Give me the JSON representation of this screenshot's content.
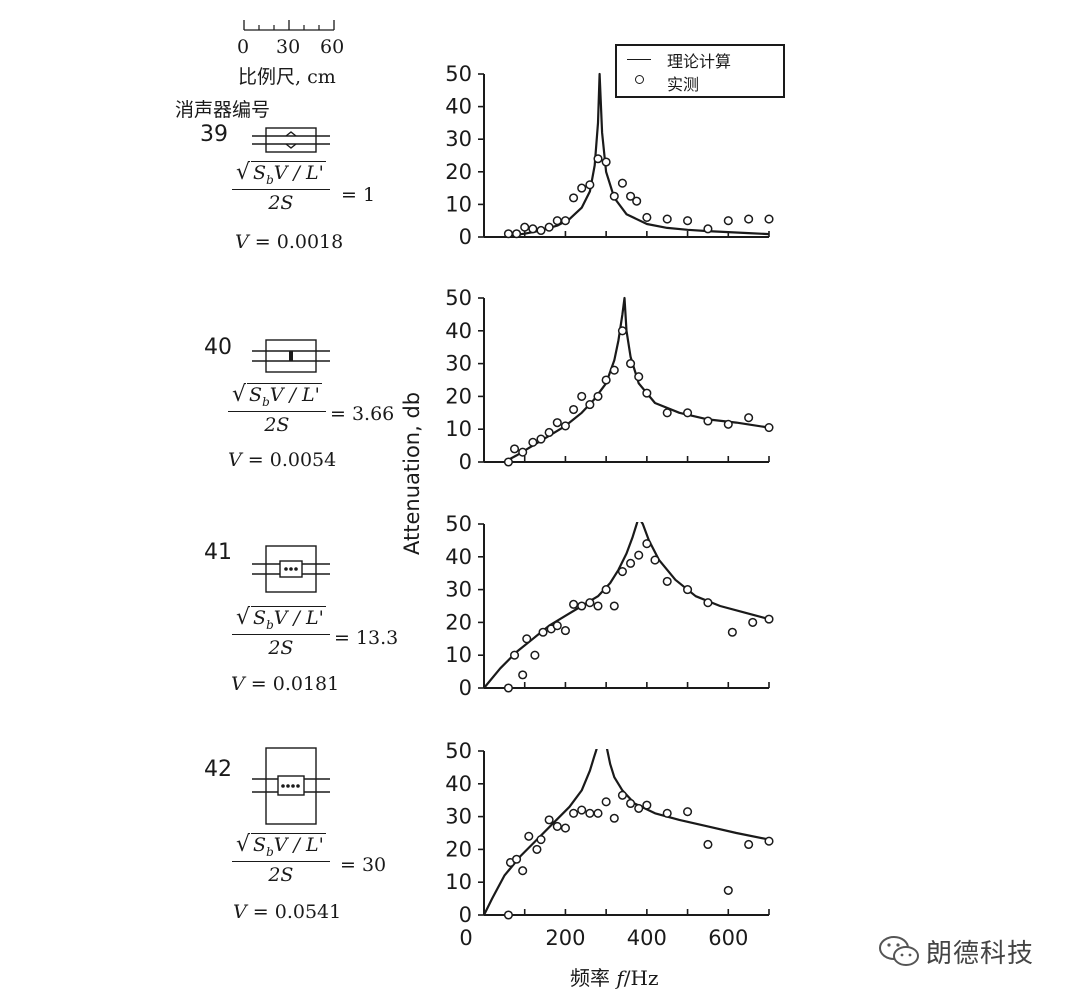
{
  "scale": {
    "ticks": [
      "0",
      "30",
      "60"
    ],
    "label": "比例尺, cm"
  },
  "id_heading": "消声器编号",
  "watermark": {
    "text": "朗德科技",
    "icon": "wechat-icon"
  },
  "muffler_panels": [
    {
      "id": "39",
      "formula_num": "S_bV / L'",
      "formula_den": "2S",
      "ratio": "= 1",
      "v_label": "V",
      "v_value": "= 0.0018"
    },
    {
      "id": "40",
      "formula_num": "S_bV / L'",
      "formula_den": "2S",
      "ratio": "= 3.66",
      "v_label": "V",
      "v_value": "= 0.0054"
    },
    {
      "id": "41",
      "formula_num": "S_bV / L'",
      "formula_den": "2S",
      "ratio": "= 13.3",
      "v_label": "V",
      "v_value": "= 0.0181"
    },
    {
      "id": "42",
      "formula_num": "S_bV / L'",
      "formula_den": "2S",
      "ratio": "= 30",
      "v_label": "V",
      "v_value": "= 0.0541"
    }
  ],
  "chart_data": {
    "type": "line",
    "ylabel": "Attenuation, db",
    "xlabel_cn": "频率",
    "xlabel_var": "f",
    "xlabel_unit": "/Hz",
    "xlim": [
      0,
      700
    ],
    "ylim": [
      0,
      50
    ],
    "x_ticks": [
      0,
      200,
      400,
      600
    ],
    "y_ticks": [
      0,
      10,
      20,
      30,
      40,
      50
    ],
    "legend": {
      "position": "top-right",
      "entries": [
        {
          "name": "理论计算",
          "marker": "line"
        },
        {
          "name": "实测",
          "marker": "circle"
        }
      ]
    },
    "panels": [
      {
        "id": "39",
        "theory": {
          "x": [
            60,
            100,
            140,
            180,
            210,
            240,
            260,
            272,
            280,
            284,
            290,
            300,
            320,
            350,
            400,
            450,
            500,
            550,
            600,
            650,
            700
          ],
          "y": [
            0.4,
            1,
            2,
            3.5,
            5.5,
            9,
            14,
            22,
            35,
            50,
            32,
            20,
            12,
            7,
            4,
            2.8,
            2.2,
            1.8,
            1.5,
            1.2,
            0.9
          ]
        },
        "measured": {
          "x": [
            60,
            80,
            100,
            120,
            140,
            160,
            180,
            200,
            220,
            240,
            260,
            280,
            300,
            320,
            340,
            360,
            375,
            400,
            450,
            500,
            550,
            600,
            650,
            700
          ],
          "y": [
            1,
            1,
            3,
            2.5,
            2,
            3,
            5,
            5,
            12,
            15,
            16,
            24,
            23,
            12.5,
            16.5,
            12.5,
            11,
            6,
            5.5,
            5,
            2.5,
            5,
            5.5,
            5.5
          ]
        }
      },
      {
        "id": "40",
        "theory": {
          "x": [
            50,
            80,
            120,
            160,
            200,
            240,
            270,
            300,
            320,
            330,
            340,
            345,
            350,
            360,
            380,
            420,
            480,
            550,
            620,
            700
          ],
          "y": [
            0,
            2,
            5,
            8,
            11,
            15,
            19,
            24,
            31,
            37,
            45,
            50,
            40,
            32,
            24,
            18,
            15,
            13,
            12,
            10.5
          ]
        },
        "measured": {
          "x": [
            60,
            75,
            95,
            120,
            140,
            160,
            180,
            200,
            220,
            240,
            260,
            280,
            300,
            320,
            340,
            360,
            380,
            400,
            450,
            500,
            550,
            600,
            650,
            700
          ],
          "y": [
            0,
            4,
            3,
            6,
            7,
            9,
            12,
            11,
            16,
            20,
            17.5,
            20,
            25,
            28,
            40,
            30,
            26,
            21,
            15,
            15,
            12.5,
            11.5,
            13.5,
            10.5
          ]
        }
      },
      {
        "id": "41",
        "theory": {
          "x": [
            0,
            40,
            80,
            120,
            160,
            200,
            240,
            280,
            310,
            330,
            350,
            365,
            375,
            380,
            390,
            405,
            430,
            470,
            520,
            580,
            640,
            700
          ],
          "y": [
            0,
            6,
            11,
            15,
            19,
            22,
            25,
            28,
            32,
            36,
            41,
            46,
            50,
            52,
            50,
            45,
            39,
            33,
            28,
            25,
            23,
            21
          ]
        },
        "measured": {
          "x": [
            60,
            75,
            95,
            105,
            125,
            145,
            165,
            180,
            200,
            220,
            240,
            260,
            280,
            300,
            320,
            340,
            360,
            380,
            400,
            420,
            450,
            500,
            550,
            610,
            660,
            700
          ],
          "y": [
            0,
            10,
            4,
            15,
            10,
            17,
            18,
            19,
            17.5,
            25.5,
            25,
            26,
            25,
            30,
            25,
            35.5,
            38,
            40.5,
            44,
            39,
            32.5,
            30,
            26,
            17,
            20,
            21
          ]
        }
      },
      {
        "id": "42",
        "theory": {
          "x": [
            0,
            20,
            50,
            90,
            130,
            170,
            210,
            240,
            260,
            270,
            275,
            280,
            290,
            300,
            310,
            320,
            340,
            370,
            420,
            480,
            550,
            620,
            700
          ],
          "y": [
            0,
            5,
            12,
            18,
            23,
            28,
            33,
            38,
            44,
            48,
            50,
            52,
            54,
            52,
            46,
            42,
            38,
            34,
            31,
            29,
            27,
            25,
            23
          ]
        },
        "measured": {
          "x": [
            60,
            65,
            80,
            95,
            110,
            130,
            140,
            160,
            180,
            200,
            220,
            240,
            260,
            280,
            300,
            320,
            340,
            360,
            380,
            400,
            450,
            500,
            550,
            600,
            650,
            700
          ],
          "y": [
            0,
            16,
            17,
            13.5,
            24,
            20,
            23,
            29,
            27,
            26.5,
            31,
            32,
            31,
            31,
            34.5,
            29.5,
            36.5,
            34,
            32.5,
            33.5,
            31,
            31.5,
            21.5,
            7.5,
            21.5,
            22.5
          ]
        }
      }
    ]
  }
}
